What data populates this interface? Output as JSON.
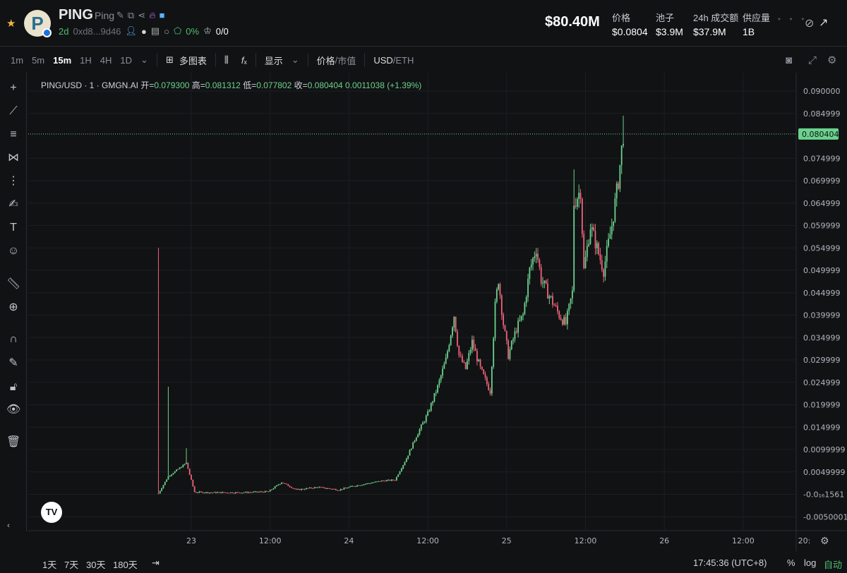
{
  "header": {
    "ticker": "PING",
    "name": "Ping",
    "age": "2d",
    "address": "0xd8...9d46",
    "holders_pct": "0%",
    "ratio": "0/0",
    "market_cap": "$80.40M",
    "stats": [
      {
        "label": "价格",
        "value": "$0.0804"
      },
      {
        "label": "池子",
        "value": "$3.9M"
      },
      {
        "label": "24h 成交额",
        "value": "$37.9M"
      },
      {
        "label": "供应量",
        "value": "1B"
      }
    ],
    "dots": "* * *"
  },
  "toolbar": {
    "intervals": [
      "1m",
      "5m",
      "15m",
      "1H",
      "4H",
      "1D"
    ],
    "active_interval": "15m",
    "multi_chart": "多图表",
    "display": "显示",
    "price": "价格",
    "mcap": "市值",
    "usd": "USD",
    "eth": "ETH"
  },
  "legend": {
    "symbol": "PING/USD · 1 · GMGN.AI",
    "open_label": "开=",
    "open": "0.079300",
    "high_label": "高=",
    "high": "0.081312",
    "low_label": "低=",
    "low": "0.077802",
    "close_label": "收=",
    "close": "0.080404",
    "change": "0.0011038 (+1.39%)"
  },
  "colors": {
    "up": "#6bd28e",
    "down": "#f0637a",
    "bg": "#111214"
  },
  "bottom": {
    "ranges": [
      "1天",
      "7天",
      "30天",
      "180天"
    ],
    "time": "17:45:36 (UTC+8)",
    "pct": "%",
    "log": "log",
    "auto": "自动"
  },
  "chart_data": {
    "type": "candlestick",
    "interval": "15m",
    "y_ticks": [
      "0.090000",
      "0.084999",
      "0.074999",
      "0.069999",
      "0.064999",
      "0.059999",
      "0.054999",
      "0.049999",
      "0.044999",
      "0.039999",
      "0.034999",
      "0.029999",
      "0.024999",
      "0.019999",
      "0.014999",
      "0.0099999",
      "0.0049999",
      "-0.0₁₆1561",
      "-0.0050001"
    ],
    "ylim": [
      -0.0055,
      0.092
    ],
    "x_ticks": [
      "23",
      "12:00",
      "24",
      "12:00",
      "25",
      "12:00",
      "26",
      "12:00",
      "20:"
    ],
    "last_price": "0.080404",
    "path": [
      [
        "22 19:00",
        0.0002
      ],
      [
        "22 20:30",
        0.004
      ],
      [
        "22 23:15",
        0.007
      ],
      [
        "23 00:30",
        0.0005
      ],
      [
        "23 03:00",
        0.0004
      ],
      [
        "23 07:30",
        0.0004
      ],
      [
        "23 11:45",
        0.0006
      ],
      [
        "23 13:45",
        0.0027
      ],
      [
        "23 16:00",
        0.001
      ],
      [
        "23 19:15",
        0.0016
      ],
      [
        "23 22:30",
        0.001
      ],
      [
        "24 00:30",
        0.0018
      ],
      [
        "24 05:00",
        0.003
      ],
      [
        "24 07:00",
        0.0032
      ],
      [
        "24 08:45",
        0.008
      ],
      [
        "24 10:15",
        0.013
      ],
      [
        "24 12:00",
        0.018
      ],
      [
        "24 13:30",
        0.024
      ],
      [
        "24 14:45",
        0.03
      ],
      [
        "24 16:00",
        0.04
      ],
      [
        "24 16:45",
        0.031
      ],
      [
        "24 17:45",
        0.028
      ],
      [
        "24 18:45",
        0.034
      ],
      [
        "24 20:00",
        0.028
      ],
      [
        "24 21:30",
        0.023
      ],
      [
        "24 22:15",
        0.042
      ],
      [
        "24 22:45",
        0.048
      ],
      [
        "24 23:30",
        0.038
      ],
      [
        "25 00:15",
        0.031
      ],
      [
        "25 01:30",
        0.037
      ],
      [
        "25 02:30",
        0.04
      ],
      [
        "25 03:30",
        0.05
      ],
      [
        "25 04:30",
        0.055
      ],
      [
        "25 05:15",
        0.048
      ],
      [
        "25 06:15",
        0.045
      ],
      [
        "25 08:00",
        0.04
      ],
      [
        "25 09:00",
        0.038
      ],
      [
        "25 10:00",
        0.045
      ],
      [
        "25 10:15",
        0.065
      ],
      [
        "25 11:15",
        0.068
      ],
      [
        "25 11:45",
        0.05
      ],
      [
        "25 12:45",
        0.06
      ],
      [
        "25 13:45",
        0.055
      ],
      [
        "25 14:45",
        0.05
      ],
      [
        "25 16:00",
        0.06
      ],
      [
        "25 17:00",
        0.07
      ],
      [
        "25 17:45",
        0.0804
      ]
    ],
    "wicks": [
      [
        "22 19:00",
        0.055
      ],
      [
        "22 20:30",
        0.024
      ],
      [
        "22 23:15",
        0.0103
      ],
      [
        "25 10:15",
        0.0725
      ],
      [
        "25 17:45",
        0.0845
      ]
    ]
  }
}
